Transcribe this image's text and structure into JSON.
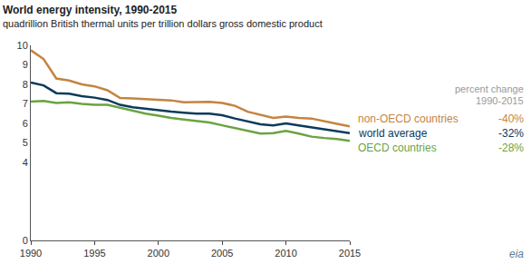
{
  "chart_data": {
    "type": "line",
    "title": "World energy intensity, 1990-2015",
    "subtitle": "quadrillion British thermal units per trillion dollars gross domestic product",
    "annotations": [
      "percent change",
      "1990-2015"
    ],
    "source": "eia",
    "x": [
      1990,
      1991,
      1992,
      1993,
      1994,
      1995,
      1996,
      1997,
      1998,
      1999,
      2000,
      2001,
      2002,
      2003,
      2004,
      2005,
      2006,
      2007,
      2008,
      2009,
      2010,
      2011,
      2012,
      2013,
      2014,
      2015
    ],
    "series": [
      {
        "name": "non-OECD countries",
        "label": "-40%",
        "color": "#c4843f",
        "values": [
          9.75,
          9.3,
          8.3,
          8.2,
          8.0,
          7.9,
          7.7,
          7.3,
          7.28,
          7.25,
          7.2,
          7.18,
          7.08,
          7.08,
          7.1,
          7.05,
          6.9,
          6.6,
          6.45,
          6.28,
          6.35,
          6.28,
          6.25,
          6.1,
          5.98,
          5.85
        ]
      },
      {
        "name": "world average",
        "label": "-32%",
        "color": "#0b3a5c",
        "values": [
          8.1,
          7.95,
          7.55,
          7.52,
          7.4,
          7.32,
          7.2,
          6.95,
          6.83,
          6.75,
          6.7,
          6.6,
          6.55,
          6.5,
          6.5,
          6.42,
          6.25,
          6.1,
          5.95,
          5.9,
          6.0,
          5.9,
          5.8,
          5.7,
          5.62,
          5.5
        ]
      },
      {
        "name": "OECD countries",
        "label": "-28%",
        "color": "#6aa342",
        "values": [
          7.12,
          7.15,
          7.05,
          7.08,
          7.0,
          6.95,
          6.95,
          6.8,
          6.62,
          6.5,
          6.4,
          6.28,
          6.2,
          6.12,
          6.05,
          5.9,
          5.75,
          5.62,
          5.48,
          5.5,
          5.62,
          5.48,
          5.32,
          5.25,
          5.2,
          5.1
        ]
      }
    ],
    "xlim": [
      1990,
      2015
    ],
    "xticks": [
      1990,
      1995,
      2000,
      2005,
      2010,
      2015
    ],
    "ylim": [
      0,
      10
    ],
    "yticks": [
      0,
      4,
      5,
      6,
      7,
      8,
      9,
      10
    ],
    "grid": false,
    "legend": "none"
  }
}
